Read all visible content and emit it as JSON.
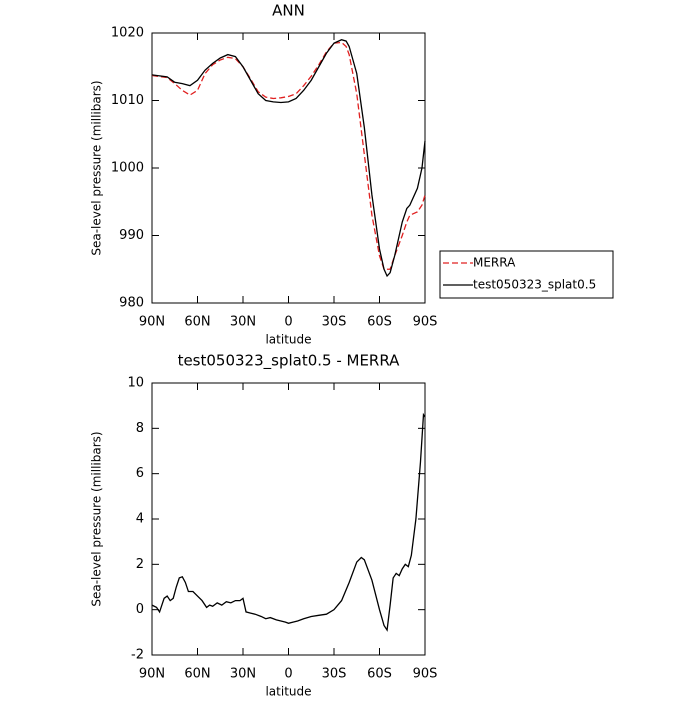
{
  "chart_data": [
    {
      "type": "line",
      "title": "ANN",
      "xlabel": "latitude",
      "ylabel": "Sea-level pressure (millibars)",
      "x": [
        90,
        80,
        75,
        70,
        65,
        60,
        55,
        50,
        45,
        40,
        35,
        30,
        25,
        20,
        15,
        10,
        5,
        0,
        -5,
        -10,
        -15,
        -20,
        -25,
        -30,
        -35,
        -38,
        -40,
        -45,
        -50,
        -55,
        -60,
        -63,
        -65,
        -67,
        -70,
        -75,
        -78,
        -80,
        -85,
        -88,
        -90
      ],
      "series": [
        {
          "name": "MERRA",
          "color": "#e02020",
          "line_style": "dashed",
          "values": [
            1013.7,
            1013.4,
            1012.5,
            1011.5,
            1010.8,
            1011.5,
            1014,
            1015.3,
            1016,
            1016.4,
            1016.2,
            1015,
            1013.2,
            1011.3,
            1010.5,
            1010.3,
            1010.4,
            1010.6,
            1011,
            1012.2,
            1013.6,
            1015.3,
            1017.2,
            1018.5,
            1018.6,
            1018,
            1016.8,
            1011,
            1002,
            993,
            987,
            985,
            985,
            985,
            987,
            990,
            992,
            993,
            993.5,
            994.5,
            996
          ]
        },
        {
          "name": "test050323_splat0.5",
          "color": "#000000",
          "line_style": "solid",
          "values": [
            1013.8,
            1013.5,
            1012.7,
            1012.5,
            1012.2,
            1013,
            1014.5,
            1015.5,
            1016.3,
            1016.8,
            1016.5,
            1015,
            1013,
            1011,
            1010,
            1009.8,
            1009.7,
            1009.8,
            1010.3,
            1011.5,
            1013,
            1015,
            1017,
            1018.5,
            1019,
            1018.8,
            1018,
            1014,
            1006,
            996,
            988,
            985,
            984,
            984.5,
            987,
            992,
            994,
            994.5,
            997,
            1000,
            1004
          ]
        }
      ],
      "xlim": [
        90,
        -90
      ],
      "xticks": [
        {
          "value": 90,
          "label": "90N"
        },
        {
          "value": 60,
          "label": "60N"
        },
        {
          "value": 30,
          "label": "30N"
        },
        0,
        {
          "value": -30,
          "label": "30S"
        },
        {
          "value": -60,
          "label": "60S"
        },
        {
          "value": -90,
          "label": "90S"
        }
      ],
      "ylim": [
        980,
        1020
      ],
      "yticks": [
        980,
        990,
        1000,
        1010,
        1020
      ],
      "legend": "outside right"
    },
    {
      "type": "line",
      "title": "test050323_splat0.5 - MERRA",
      "xlabel": "latitude",
      "ylabel": "Sea-level pressure (millibars)",
      "x": [
        90,
        87,
        85,
        82,
        80,
        78,
        76,
        74,
        72,
        70,
        68,
        66,
        63,
        60,
        57,
        54,
        52,
        50,
        47,
        44,
        41,
        38,
        35,
        32,
        30,
        28,
        25,
        22,
        18,
        15,
        12,
        8,
        5,
        2,
        0,
        -3,
        -6,
        -10,
        -15,
        -20,
        -25,
        -30,
        -35,
        -40,
        -45,
        -48,
        -50,
        -55,
        -60,
        -63,
        -65,
        -67,
        -69,
        -71,
        -73,
        -75,
        -77,
        -79,
        -81,
        -84,
        -87,
        -89,
        -90
      ],
      "series": [
        {
          "name": null,
          "color": "#000000",
          "line_style": "solid",
          "values": [
            0.2,
            0.1,
            -0.1,
            0.5,
            0.6,
            0.4,
            0.5,
            1.0,
            1.4,
            1.45,
            1.2,
            0.8,
            0.8,
            0.6,
            0.4,
            0.1,
            0.2,
            0.15,
            0.3,
            0.2,
            0.35,
            0.3,
            0.4,
            0.4,
            0.5,
            -0.1,
            -0.15,
            -0.2,
            -0.3,
            -0.4,
            -0.35,
            -0.45,
            -0.5,
            -0.55,
            -0.6,
            -0.55,
            -0.5,
            -0.4,
            -0.3,
            -0.25,
            -0.2,
            0,
            0.4,
            1.2,
            2.1,
            2.3,
            2.2,
            1.3,
            0,
            -0.7,
            -0.9,
            0.2,
            1.4,
            1.6,
            1.5,
            1.8,
            2,
            1.9,
            2.4,
            4,
            6.5,
            8.6,
            8.5
          ]
        }
      ],
      "xlim": [
        90,
        -90
      ],
      "xticks": [
        {
          "value": 90,
          "label": "90N"
        },
        {
          "value": 60,
          "label": "60N"
        },
        {
          "value": 30,
          "label": "30N"
        },
        0,
        {
          "value": -30,
          "label": "30S"
        },
        {
          "value": -60,
          "label": "60S"
        },
        {
          "value": -90,
          "label": "90S"
        }
      ],
      "ylim": [
        -2,
        10
      ],
      "yticks": [
        -2,
        0,
        2,
        4,
        6,
        8,
        10
      ]
    }
  ]
}
